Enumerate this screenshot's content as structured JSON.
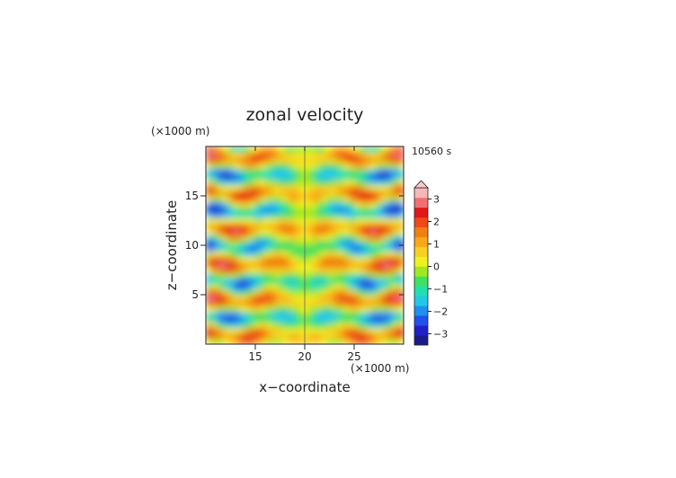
{
  "chart_data": {
    "type": "heatmap",
    "title": "zonal velocity",
    "xlabel": "x−coordinate",
    "ylabel": "z−coordinate",
    "x_unit": "(×1000 m)",
    "y_unit": "(×1000 m)",
    "time_label": "10560 s",
    "xlim": [
      10,
      30
    ],
    "ylim": [
      0,
      20
    ],
    "x_ticks": [
      15,
      20,
      25
    ],
    "y_ticks": [
      5,
      10,
      15
    ],
    "colorbar": {
      "ticks": [
        3,
        2,
        1,
        0,
        -1,
        -2,
        -3
      ],
      "tick_labels": [
        "3",
        "2",
        "1",
        "0",
        "−1",
        "−2",
        "−3"
      ],
      "range": [
        -3.5,
        3.5
      ],
      "colors": [
        "#1a1a8c",
        "#2020c8",
        "#2050ee",
        "#1e90f0",
        "#22c8e8",
        "#20e0b0",
        "#40e060",
        "#a0e820",
        "#eef020",
        "#f8d020",
        "#f8a818",
        "#f08010",
        "#f04818",
        "#e01818",
        "#f07070",
        "#f8b8b8"
      ]
    }
  }
}
